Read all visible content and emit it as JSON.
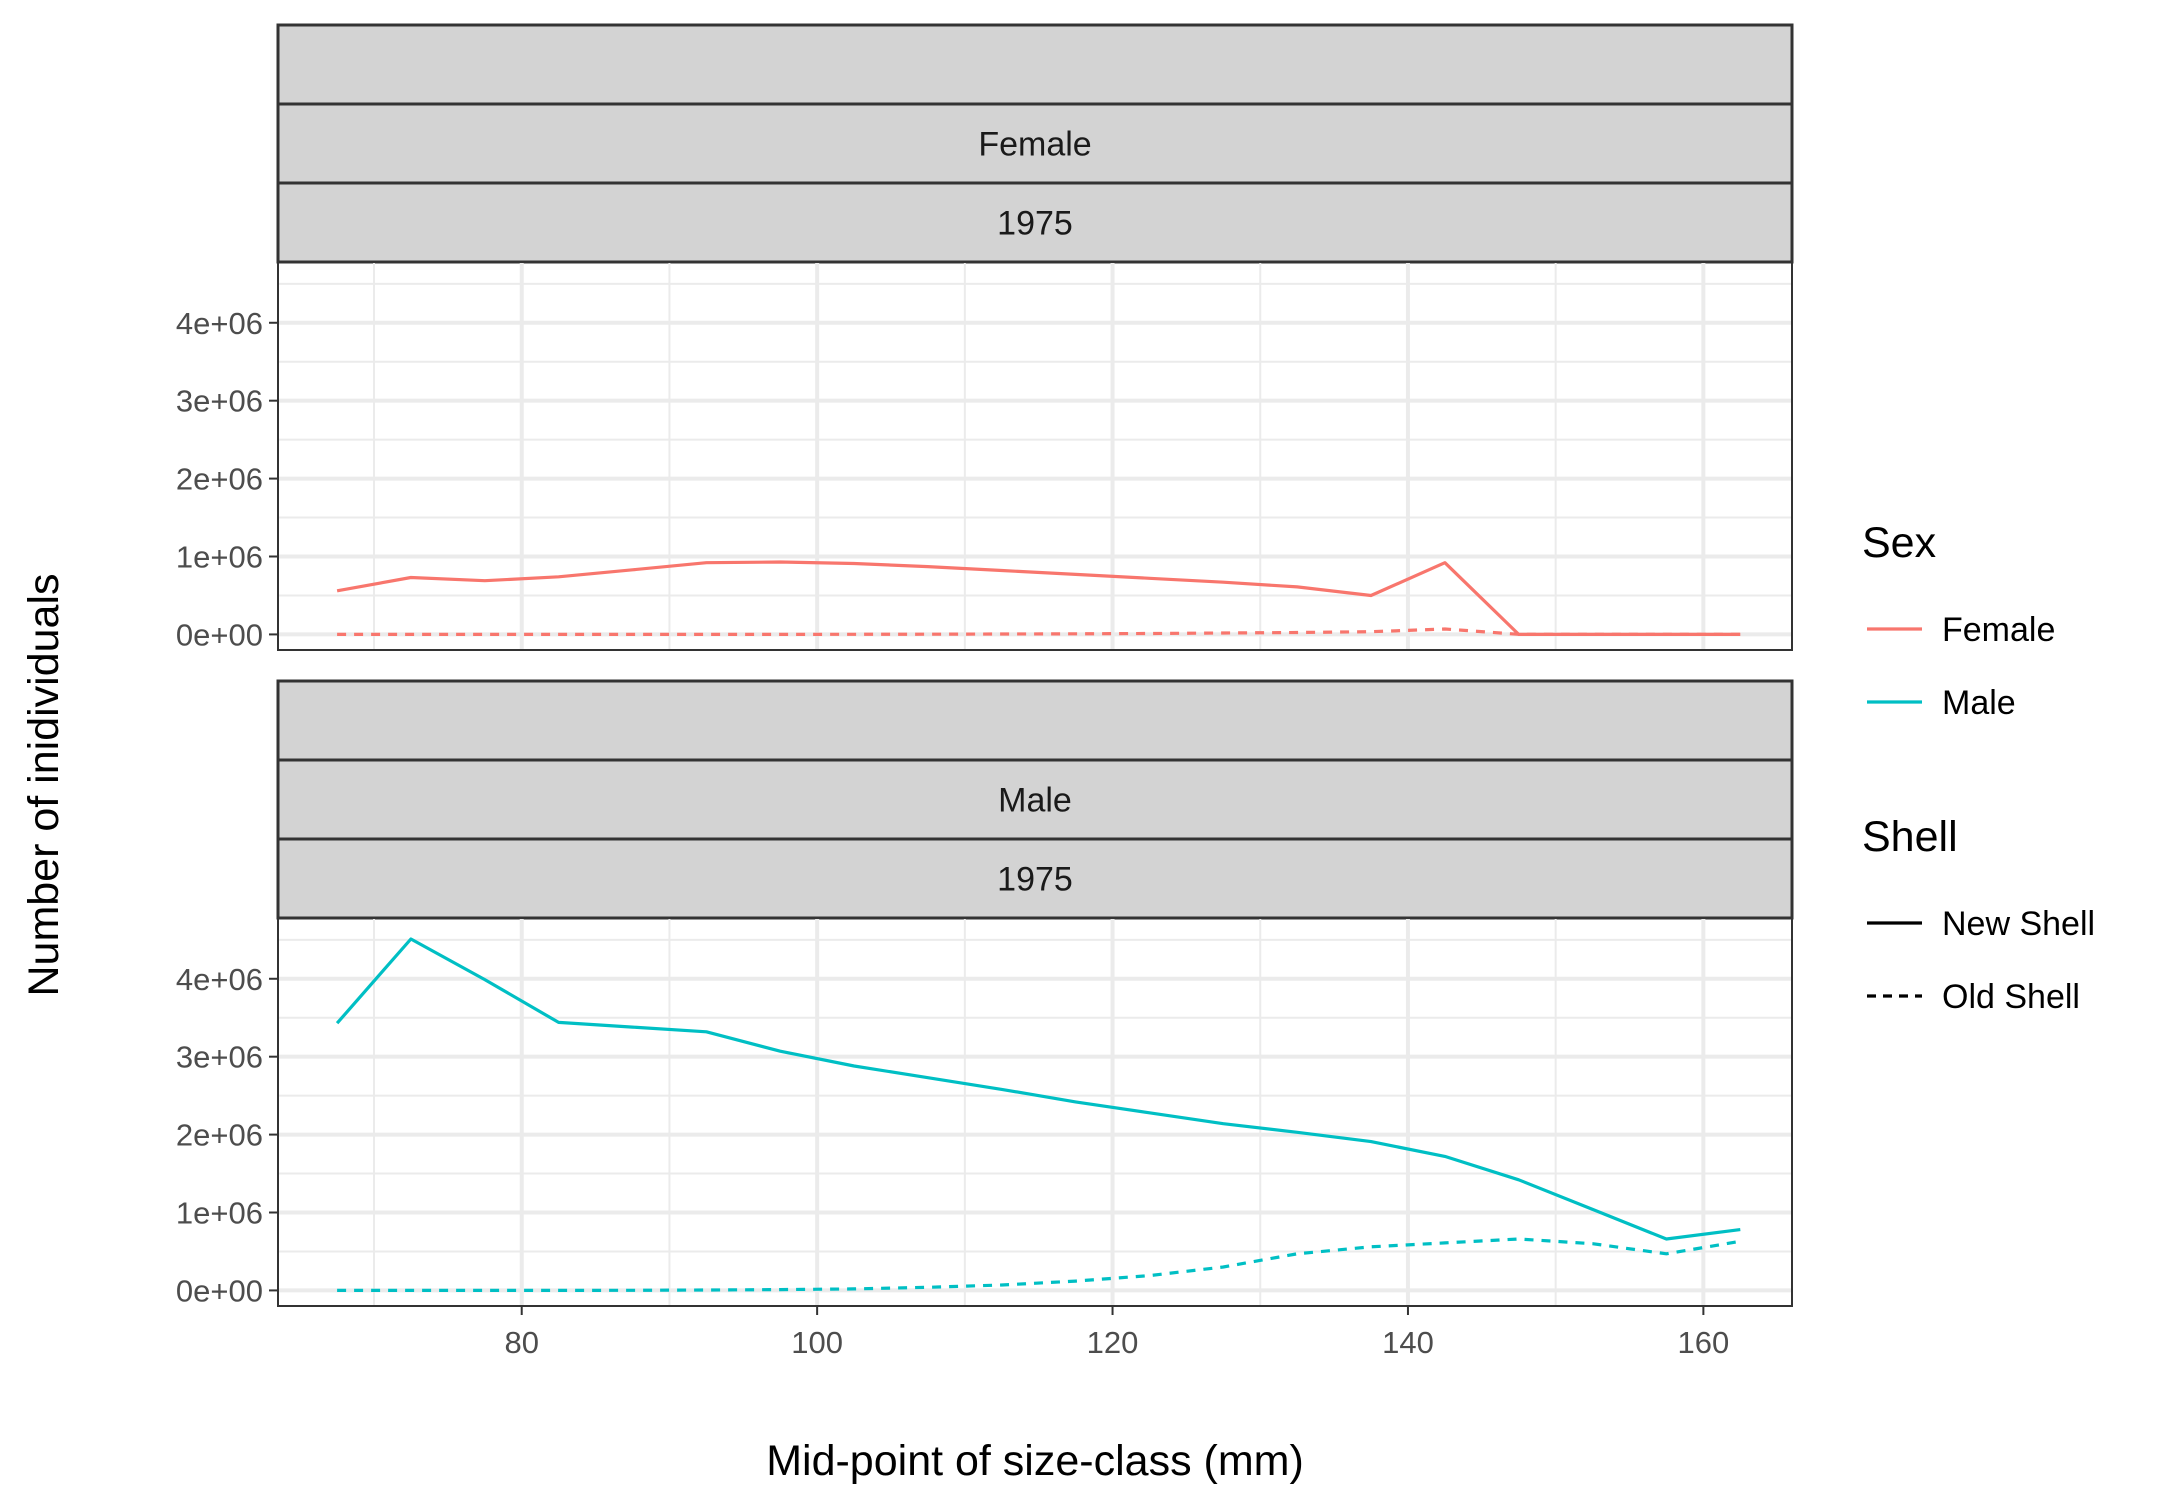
{
  "chart_data": {
    "type": "line",
    "xlabel": "Mid-point of size-class (mm)",
    "ylabel": "Number of inidividuals",
    "xlim": [
      63.5,
      166
    ],
    "ylim": [
      -200000,
      4780000
    ],
    "x_ticks": [
      80,
      100,
      120,
      140,
      160
    ],
    "x_tick_labels": [
      "80",
      "100",
      "120",
      "140",
      "160"
    ],
    "y_ticks": [
      0,
      1000000,
      2000000,
      3000000,
      4000000
    ],
    "y_tick_labels": [
      "0e+00",
      "1e+06",
      "2e+06",
      "3e+06",
      "4e+06"
    ],
    "grid": true,
    "legend_position": "right",
    "panels": [
      {
        "strips": [
          "",
          "Female",
          "1975"
        ],
        "sex": "Female",
        "color": "#F8766D",
        "series": [
          {
            "shell": "New Shell",
            "x": [
              67.5,
              72.5,
              77.5,
              82.5,
              87.5,
              92.5,
              97.5,
              102.5,
              107.5,
              112.5,
              117.5,
              122.5,
              127.5,
              132.5,
              137.5,
              142.5,
              147.5,
              152.5,
              157.5,
              162.5
            ],
            "y": [
              560000,
              730000,
              690000,
              740000,
              830000,
              920000,
              930000,
              910000,
              870000,
              820000,
              770000,
              720000,
              670000,
              610000,
              500000,
              920000,
              0,
              0,
              0,
              0
            ]
          },
          {
            "shell": "Old Shell",
            "x": [
              67.5,
              72.5,
              77.5,
              82.5,
              87.5,
              92.5,
              97.5,
              102.5,
              107.5,
              112.5,
              117.5,
              122.5,
              127.5,
              132.5,
              137.5,
              142.5,
              147.5,
              152.5,
              157.5,
              162.5
            ],
            "y": [
              0,
              0,
              0,
              0,
              0,
              0,
              0,
              2000,
              3000,
              5000,
              8000,
              12000,
              18000,
              25000,
              35000,
              70000,
              2000,
              0,
              0,
              0
            ]
          }
        ]
      },
      {
        "strips": [
          "",
          "Male",
          "1975"
        ],
        "sex": "Male",
        "color": "#00BFC4",
        "series": [
          {
            "shell": "New Shell",
            "x": [
              67.5,
              72.5,
              77.5,
              82.5,
              87.5,
              92.5,
              97.5,
              102.5,
              107.5,
              112.5,
              117.5,
              122.5,
              127.5,
              132.5,
              137.5,
              142.5,
              147.5,
              152.5,
              157.5,
              162.5
            ],
            "y": [
              3430000,
              4510000,
              3990000,
              3440000,
              3380000,
              3320000,
              3070000,
              2880000,
              2730000,
              2580000,
              2420000,
              2280000,
              2140000,
              2030000,
              1910000,
              1720000,
              1420000,
              1040000,
              660000,
              780000
            ]
          },
          {
            "shell": "Old Shell",
            "x": [
              67.5,
              72.5,
              77.5,
              82.5,
              87.5,
              92.5,
              97.5,
              102.5,
              107.5,
              112.5,
              117.5,
              122.5,
              127.5,
              132.5,
              137.5,
              142.5,
              147.5,
              152.5,
              157.5,
              162.5
            ],
            "y": [
              0,
              0,
              0,
              0,
              2000,
              5000,
              10000,
              20000,
              40000,
              70000,
              120000,
              190000,
              300000,
              470000,
              560000,
              610000,
              660000,
              600000,
              470000,
              630000
            ]
          }
        ]
      }
    ],
    "legends": [
      {
        "title": "Sex",
        "items": [
          {
            "label": "Female",
            "color": "#F8766D",
            "linetype": "solid"
          },
          {
            "label": "Male",
            "color": "#00BFC4",
            "linetype": "solid"
          }
        ]
      },
      {
        "title": "Shell",
        "items": [
          {
            "label": "New Shell",
            "color": "#000000",
            "linetype": "solid"
          },
          {
            "label": "Old Shell",
            "color": "#000000",
            "linetype": "dashed"
          }
        ]
      }
    ]
  }
}
